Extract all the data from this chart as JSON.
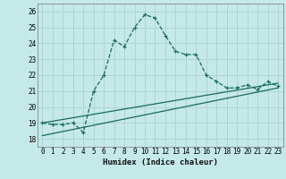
{
  "xlabel": "Humidex (Indice chaleur)",
  "background_color": "#c5e8e8",
  "grid_color": "#afd4d4",
  "line_color": "#1a6b5a",
  "ylim": [
    17.5,
    26.5
  ],
  "xlim": [
    -0.5,
    23.5
  ],
  "yticks": [
    18,
    19,
    20,
    21,
    22,
    23,
    24,
    25,
    26
  ],
  "xticks": [
    0,
    1,
    2,
    3,
    4,
    5,
    6,
    7,
    8,
    9,
    10,
    11,
    12,
    13,
    14,
    15,
    16,
    17,
    18,
    19,
    20,
    21,
    22,
    23
  ],
  "curve1_x": [
    0,
    1,
    2,
    3,
    4,
    5,
    6,
    7,
    8,
    9,
    10,
    11,
    12,
    13,
    14,
    15,
    16,
    17,
    18,
    19,
    20,
    21,
    22,
    23
  ],
  "curve1_y": [
    19.0,
    18.9,
    18.9,
    19.0,
    18.4,
    21.0,
    22.0,
    24.2,
    23.8,
    25.0,
    25.8,
    25.6,
    24.5,
    23.5,
    23.3,
    23.3,
    22.0,
    21.6,
    21.2,
    21.2,
    21.4,
    21.1,
    21.6,
    21.3
  ],
  "line2_x": [
    0,
    23
  ],
  "line2_y": [
    19.0,
    21.5
  ],
  "line3_x": [
    0,
    23
  ],
  "line3_y": [
    18.2,
    21.2
  ],
  "xlabel_fontsize": 6.5,
  "tick_fontsize": 5.5
}
